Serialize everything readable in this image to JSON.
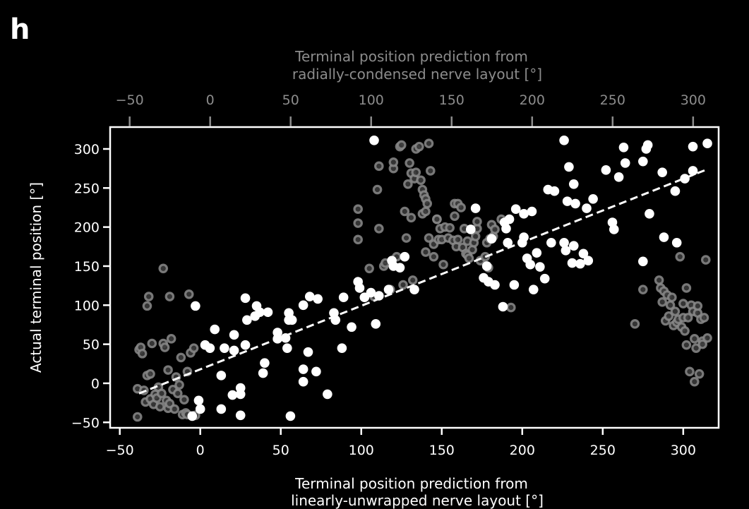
{
  "panel_label": "h",
  "chart_data": {
    "type": "scatter",
    "xlabel_bottom": [
      "Terminal position prediction from",
      "linearly-unwrapped nerve layout [°]"
    ],
    "xlabel_top": [
      "Terminal position prediction from",
      "radially-condensed nerve layout [°]"
    ],
    "ylabel": "Actual terminal position [°]",
    "xlim": [
      -56,
      322
    ],
    "ylim": [
      -57,
      328
    ],
    "xticks": [
      -50,
      0,
      50,
      100,
      150,
      200,
      250,
      300
    ],
    "yticks": [
      -50,
      0,
      50,
      100,
      150,
      200,
      250,
      300
    ],
    "xtick_labels": [
      "−50",
      "0",
      "50",
      "100",
      "150",
      "200",
      "250",
      "300"
    ],
    "ytick_labels": [
      "−50",
      "0",
      "50",
      "100",
      "150",
      "200",
      "250",
      "300"
    ],
    "fit_line": {
      "x": [
        -38,
        315
      ],
      "y": [
        -13,
        274
      ],
      "style": "dashed"
    },
    "colors": {
      "background": "#000000",
      "linear": "#ffffff",
      "radial": "#8a8a8a"
    },
    "series": [
      {
        "points": [
          [
            -3,
            99
          ],
          [
            -5,
            -42
          ],
          [
            -1,
            -22
          ],
          [
            0,
            -33
          ],
          [
            3,
            49
          ],
          [
            6,
            45
          ],
          [
            9,
            69
          ],
          [
            13,
            -33
          ],
          [
            13,
            10
          ],
          [
            15,
            45
          ],
          [
            20,
            -15
          ],
          [
            21,
            62
          ],
          [
            21,
            42
          ],
          [
            25,
            -6
          ],
          [
            25,
            -14
          ],
          [
            25,
            -41
          ],
          [
            28,
            49
          ],
          [
            28,
            109
          ],
          [
            29,
            81
          ],
          [
            34,
            86
          ],
          [
            35,
            99
          ],
          [
            37,
            91
          ],
          [
            39,
            13
          ],
          [
            40,
            26
          ],
          [
            42,
            91
          ],
          [
            48,
            65
          ],
          [
            48,
            57
          ],
          [
            53,
            58
          ],
          [
            54,
            45
          ],
          [
            55,
            90
          ],
          [
            55,
            81
          ],
          [
            56,
            -42
          ],
          [
            57,
            81
          ],
          [
            64,
            2
          ],
          [
            64,
            18
          ],
          [
            64,
            100
          ],
          [
            67,
            40
          ],
          [
            68,
            111
          ],
          [
            72,
            15
          ],
          [
            73,
            108
          ],
          [
            79,
            -14
          ],
          [
            83,
            90
          ],
          [
            84,
            81
          ],
          [
            88,
            45
          ],
          [
            89,
            110
          ],
          [
            94,
            72
          ],
          [
            98,
            130
          ],
          [
            99,
            122
          ],
          [
            102,
            110
          ],
          [
            106,
            116
          ],
          [
            108,
            311
          ],
          [
            109,
            76
          ],
          [
            111,
            112
          ],
          [
            117,
            120
          ],
          [
            119,
            157
          ],
          [
            120,
            150
          ],
          [
            124,
            148
          ],
          [
            127,
            162
          ],
          [
            133,
            120
          ],
          [
            168,
            197
          ],
          [
            171,
            224
          ],
          [
            176,
            135
          ],
          [
            178,
            150
          ],
          [
            179,
            130
          ],
          [
            181,
            185
          ],
          [
            183,
            126
          ],
          [
            188,
            98
          ],
          [
            189,
            206
          ],
          [
            190,
            198
          ],
          [
            191,
            180
          ],
          [
            192,
            210
          ],
          [
            195,
            126
          ],
          [
            196,
            223
          ],
          [
            200,
            180
          ],
          [
            201,
            187
          ],
          [
            201,
            217
          ],
          [
            203,
            160
          ],
          [
            205,
            152
          ],
          [
            206,
            220
          ],
          [
            207,
            120
          ],
          [
            209,
            167
          ],
          [
            211,
            149
          ],
          [
            214,
            134
          ],
          [
            216,
            248
          ],
          [
            218,
            180
          ],
          [
            220,
            246
          ],
          [
            226,
            311
          ],
          [
            226,
            180
          ],
          [
            227,
            170
          ],
          [
            228,
            233
          ],
          [
            229,
            277
          ],
          [
            231,
            154
          ],
          [
            232,
            255
          ],
          [
            232,
            176
          ],
          [
            233,
            230
          ],
          [
            236,
            153
          ],
          [
            238,
            166
          ],
          [
            240,
            224
          ],
          [
            241,
            157
          ],
          [
            244,
            236
          ],
          [
            252,
            273
          ],
          [
            256,
            206
          ],
          [
            257,
            197
          ],
          [
            260,
            264
          ],
          [
            263,
            302
          ],
          [
            264,
            282
          ],
          [
            275,
            284
          ],
          [
            275,
            156
          ],
          [
            277,
            300
          ],
          [
            278,
            305
          ],
          [
            279,
            217
          ],
          [
            287,
            270
          ],
          [
            288,
            187
          ],
          [
            295,
            246
          ],
          [
            296,
            180
          ],
          [
            301,
            262
          ],
          [
            306,
            303
          ],
          [
            306,
            272
          ],
          [
            315,
            307
          ]
        ]
      },
      {
        "points": [
          [
            -39,
            -43
          ],
          [
            -39,
            -7
          ],
          [
            -38,
            43
          ],
          [
            -37,
            46
          ],
          [
            -36,
            38
          ],
          [
            -35,
            -9
          ],
          [
            -34,
            -24
          ],
          [
            -33,
            99
          ],
          [
            -33,
            10
          ],
          [
            -32,
            111
          ],
          [
            -31,
            -20
          ],
          [
            -31,
            12
          ],
          [
            -30,
            51
          ],
          [
            -29,
            -27
          ],
          [
            -28,
            -14
          ],
          [
            -27,
            -19
          ],
          [
            -26,
            -5
          ],
          [
            -25,
            -30
          ],
          [
            -24,
            -13
          ],
          [
            -23,
            147
          ],
          [
            -23,
            51
          ],
          [
            -22,
            46
          ],
          [
            -21,
            -22
          ],
          [
            -20,
            17
          ],
          [
            -20,
            -32
          ],
          [
            -19,
            111
          ],
          [
            -19,
            -26
          ],
          [
            -18,
            57
          ],
          [
            -17,
            -8
          ],
          [
            -16,
            -33
          ],
          [
            -15,
            8
          ],
          [
            -14,
            -13
          ],
          [
            -13,
            -2
          ],
          [
            -12,
            33
          ],
          [
            -11,
            -40
          ],
          [
            -10,
            -21
          ],
          [
            -9,
            -38
          ],
          [
            -8,
            15
          ],
          [
            -8,
            -40
          ],
          [
            -7,
            114
          ],
          [
            -6,
            39
          ],
          [
            -4,
            45
          ],
          [
            -3,
            -41
          ],
          [
            98,
            223
          ],
          [
            98,
            205
          ],
          [
            98,
            184
          ],
          [
            105,
            147
          ],
          [
            108,
            111
          ],
          [
            110,
            248
          ],
          [
            111,
            278
          ],
          [
            111,
            198
          ],
          [
            114,
            150
          ],
          [
            115,
            154
          ],
          [
            118,
            120
          ],
          [
            120,
            275
          ],
          [
            120,
            283
          ],
          [
            122,
            162
          ],
          [
            124,
            303
          ],
          [
            125,
            305
          ],
          [
            126,
            126
          ],
          [
            127,
            220
          ],
          [
            128,
            186
          ],
          [
            129,
            255
          ],
          [
            130,
            282
          ],
          [
            131,
            269
          ],
          [
            131,
            212
          ],
          [
            132,
            132
          ],
          [
            133,
            262
          ],
          [
            134,
            300
          ],
          [
            134,
            270
          ],
          [
            136,
            303
          ],
          [
            137,
            260
          ],
          [
            138,
            217
          ],
          [
            138,
            248
          ],
          [
            139,
            241
          ],
          [
            140,
            236
          ],
          [
            140,
            220
          ],
          [
            140,
            168
          ],
          [
            141,
            230
          ],
          [
            142,
            186
          ],
          [
            142,
            307
          ],
          [
            143,
            272
          ],
          [
            145,
            178
          ],
          [
            145,
            162
          ],
          [
            147,
            210
          ],
          [
            147,
            210
          ],
          [
            148,
            184
          ],
          [
            149,
            198
          ],
          [
            150,
            184
          ],
          [
            151,
            152
          ],
          [
            152,
            200
          ],
          [
            154,
            186
          ],
          [
            155,
            199
          ],
          [
            157,
            183
          ],
          [
            158,
            230
          ],
          [
            158,
            214
          ],
          [
            159,
            175
          ],
          [
            160,
            184
          ],
          [
            160,
            230
          ],
          [
            162,
            225
          ],
          [
            163,
            174
          ],
          [
            164,
            198
          ],
          [
            165,
            166
          ],
          [
            166,
            182
          ],
          [
            166,
            164
          ],
          [
            167,
            160
          ],
          [
            169,
            171
          ],
          [
            170,
            180
          ],
          [
            171,
            188
          ],
          [
            172,
            198
          ],
          [
            172,
            207
          ],
          [
            174,
            157
          ],
          [
            177,
            162
          ],
          [
            178,
            180
          ],
          [
            179,
            148
          ],
          [
            180,
            185
          ],
          [
            181,
            203
          ],
          [
            182,
            188
          ],
          [
            183,
            197
          ],
          [
            187,
            210
          ],
          [
            193,
            97
          ],
          [
            270,
            76
          ],
          [
            275,
            120
          ],
          [
            285,
            132
          ],
          [
            286,
            122
          ],
          [
            287,
            104
          ],
          [
            288,
            118
          ],
          [
            289,
            80
          ],
          [
            290,
            113
          ],
          [
            291,
            86
          ],
          [
            292,
            100
          ],
          [
            293,
            110
          ],
          [
            294,
            74
          ],
          [
            295,
            92
          ],
          [
            296,
            78
          ],
          [
            297,
            82
          ],
          [
            298,
            162
          ],
          [
            299,
            72
          ],
          [
            300,
            102
          ],
          [
            300,
            84
          ],
          [
            301,
            67
          ],
          [
            302,
            49
          ],
          [
            302,
            122
          ],
          [
            303,
            84
          ],
          [
            304,
            15
          ],
          [
            305,
            100
          ],
          [
            306,
            92
          ],
          [
            307,
            2
          ],
          [
            307,
            57
          ],
          [
            308,
            45
          ],
          [
            309,
            90
          ],
          [
            309,
            99
          ],
          [
            310,
            12
          ],
          [
            311,
            82
          ],
          [
            312,
            54
          ],
          [
            312,
            50
          ],
          [
            313,
            84
          ],
          [
            314,
            158
          ],
          [
            315,
            58
          ]
        ]
      }
    ]
  }
}
